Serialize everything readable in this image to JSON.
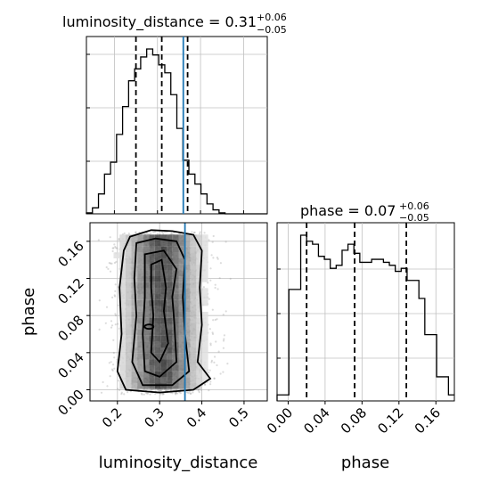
{
  "chart_data": {
    "type": "corner",
    "parameters": [
      "luminosity_distance",
      "phase"
    ],
    "truth": {
      "luminosity_distance": 0.36,
      "phase": null
    },
    "colors": {
      "truth_line": "#1f77b4",
      "hist_line": "#000000",
      "quantile_line": "#000000",
      "grid": "#c0c0c0"
    },
    "panels": [
      {
        "id": "hist-luminosity-distance",
        "type": "histogram",
        "param": "luminosity_distance",
        "title_main": "luminosity_distance = 0.31",
        "title_plus": "+0.06",
        "title_minus": "−0.05",
        "quantiles": [
          0.25,
          0.31,
          0.37
        ],
        "xlim": [
          0.135,
          0.555
        ],
        "bin_width": 0.014,
        "bin_start": 0.135,
        "counts": [
          0.5,
          3,
          10,
          20,
          26,
          40,
          54,
          67,
          73,
          79,
          83,
          80,
          75,
          71,
          60,
          43,
          27,
          20,
          15,
          10,
          5,
          2,
          0.5,
          0,
          0,
          0,
          0,
          0,
          0,
          0
        ]
      },
      {
        "id": "hist-phase",
        "type": "histogram",
        "param": "phase",
        "title_main": "phase = 0.07",
        "title_plus": "+0.06",
        "title_minus": "−0.05",
        "quantiles": [
          0.02,
          0.072,
          0.128
        ],
        "xlim": [
          -0.012,
          0.18
        ],
        "bin_width": 0.0064,
        "bin_start": -0.012,
        "counts": [
          2,
          2,
          37,
          37,
          55,
          53,
          52,
          48,
          47,
          44,
          45,
          50,
          52,
          49,
          46,
          46,
          47,
          47,
          46,
          45,
          43,
          44,
          40,
          40,
          34,
          22,
          22,
          8,
          8,
          2
        ]
      },
      {
        "id": "scatter-2d",
        "type": "2d-density",
        "x_param": "luminosity_distance",
        "y_param": "phase",
        "xlim": [
          0.135,
          0.555
        ],
        "ylim": [
          -0.012,
          0.18
        ],
        "x_label": "luminosity_distance",
        "y_label": "phase",
        "x_ticks": [
          "0.2",
          "0.3",
          "0.4",
          "0.5"
        ],
        "y_ticks": [
          "0.00",
          "0.04",
          "0.08",
          "0.12",
          "0.16"
        ]
      },
      {
        "id": "phase-axis",
        "type": "axis",
        "x_label": "phase",
        "x_ticks": [
          "0.00",
          "0.04",
          "0.08",
          "0.12",
          "0.16"
        ]
      }
    ]
  }
}
